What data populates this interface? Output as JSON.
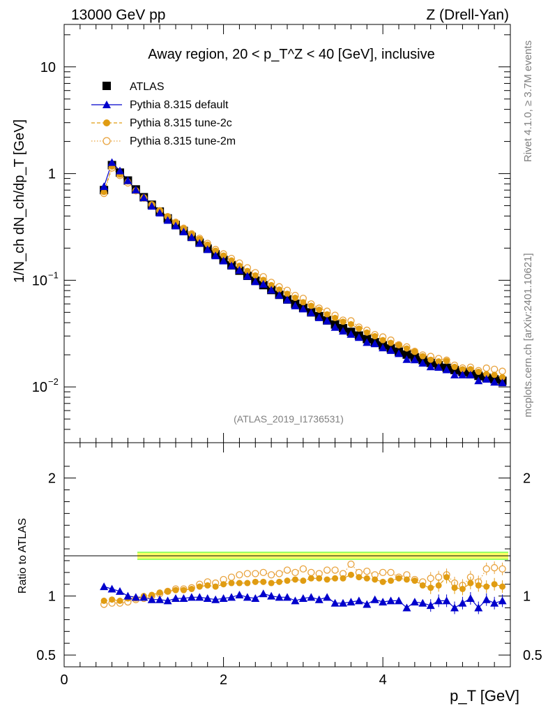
{
  "header": {
    "left_text": "13000 GeV pp",
    "right_text": "Z (Drell-Yan)"
  },
  "side_labels": {
    "rivet": "Rivet 4.1.0, ≥ 3.7M events",
    "mcplots": "mcplots.cern.ch [arXiv:2401.10621]"
  },
  "watermark": "(ATLAS_2019_I1736531)",
  "colors": {
    "atlas": "#000000",
    "default": "#0000cc",
    "tune2c": "#e09c12",
    "tune2m": "#e8a23c",
    "band_inner": "#ffff66",
    "band_outer": "#99ff66"
  },
  "chart_data": {
    "type": "scatter",
    "title": "Away region, 20 < p_T^Z < 40 [GeV], inclusive",
    "xlabel": "p_T [GeV]",
    "ylabel": "1/N_ch dN_ch/dp_T [GeV]",
    "ratio_ylabel": "Ratio to ATLAS",
    "xlim": [
      0,
      5.6
    ],
    "ylim": [
      0.003,
      25
    ],
    "ratio_ylim": [
      0.4,
      2.3
    ],
    "log_y": true,
    "x_ticks": [
      "0",
      "2",
      "4"
    ],
    "y_ticks": [
      "10",
      "1",
      "10^-1",
      "10^-2"
    ],
    "ratio_ticks": [
      "2",
      "1",
      "0.5"
    ],
    "legend": [
      "ATLAS",
      "Pythia 8.315 default",
      "Pythia 8.315 tune-2c",
      "Pythia 8.315 tune-2m"
    ],
    "x": [
      0.5,
      0.6,
      0.7,
      0.8,
      0.9,
      1.0,
      1.1,
      1.2,
      1.3,
      1.4,
      1.5,
      1.6,
      1.7,
      1.8,
      1.9,
      2.0,
      2.1,
      2.2,
      2.3,
      2.4,
      2.5,
      2.6,
      2.7,
      2.8,
      2.9,
      3.0,
      3.1,
      3.2,
      3.3,
      3.4,
      3.5,
      3.6,
      3.7,
      3.8,
      3.9,
      4.0,
      4.1,
      4.2,
      4.3,
      4.4,
      4.5,
      4.6,
      4.7,
      4.8,
      4.9,
      5.0,
      5.1,
      5.2,
      5.3,
      5.4,
      5.5
    ],
    "atlas": [
      0.7,
      1.2,
      1.02,
      0.86,
      0.71,
      0.6,
      0.51,
      0.44,
      0.38,
      0.33,
      0.29,
      0.255,
      0.225,
      0.198,
      0.175,
      0.155,
      0.138,
      0.123,
      0.11,
      0.099,
      0.09,
      0.081,
      0.073,
      0.066,
      0.06,
      0.055,
      0.05,
      0.046,
      0.042,
      0.0385,
      0.0355,
      0.0328,
      0.0303,
      0.0281,
      0.0262,
      0.0245,
      0.0229,
      0.0214,
      0.0201,
      0.0189,
      0.0178,
      0.0168,
      0.0159,
      0.0151,
      0.0144,
      0.0138,
      0.0132,
      0.0127,
      0.0122,
      0.0118,
      0.0114
    ],
    "series": [
      {
        "name": "Pythia 8.315 default",
        "ratio": [
          1.08,
          1.06,
          1.04,
          1.0,
          0.99,
          0.99,
          0.97,
          0.97,
          0.96,
          0.98,
          0.98,
          0.99,
          0.99,
          0.98,
          0.97,
          0.98,
          0.99,
          1.01,
          0.99,
          0.98,
          1.02,
          1.0,
          0.99,
          0.99,
          0.96,
          0.98,
          0.99,
          0.97,
          0.99,
          0.94,
          0.94,
          0.95,
          0.96,
          0.93,
          0.97,
          0.95,
          0.96,
          0.96,
          0.9,
          0.95,
          0.94,
          0.92,
          0.96,
          0.96,
          0.9,
          0.94,
          0.98,
          0.9,
          0.97,
          0.94,
          0.96
        ]
      },
      {
        "name": "Pythia 8.315 tune-2c",
        "ratio": [
          0.96,
          0.97,
          0.96,
          0.98,
          0.98,
          1.0,
          1.01,
          1.03,
          1.04,
          1.05,
          1.05,
          1.06,
          1.08,
          1.09,
          1.08,
          1.1,
          1.11,
          1.11,
          1.11,
          1.12,
          1.12,
          1.11,
          1.12,
          1.13,
          1.14,
          1.13,
          1.15,
          1.15,
          1.14,
          1.15,
          1.15,
          1.18,
          1.16,
          1.15,
          1.14,
          1.12,
          1.13,
          1.15,
          1.14,
          1.13,
          1.09,
          1.07,
          1.09,
          1.16,
          1.07,
          1.06,
          1.11,
          1.09,
          1.08,
          1.1,
          1.08
        ]
      },
      {
        "name": "Pythia 8.315 tune-2m",
        "ratio": [
          0.93,
          0.94,
          0.94,
          0.95,
          0.97,
          0.98,
          1.0,
          1.02,
          1.04,
          1.06,
          1.06,
          1.07,
          1.1,
          1.12,
          1.11,
          1.14,
          1.16,
          1.18,
          1.19,
          1.19,
          1.2,
          1.18,
          1.19,
          1.22,
          1.2,
          1.23,
          1.2,
          1.19,
          1.22,
          1.22,
          1.19,
          1.27,
          1.2,
          1.21,
          1.18,
          1.2,
          1.2,
          1.16,
          1.18,
          1.14,
          1.12,
          1.15,
          1.16,
          1.18,
          1.11,
          1.09,
          1.16,
          1.12,
          1.23,
          1.24,
          1.23
        ]
      }
    ]
  }
}
